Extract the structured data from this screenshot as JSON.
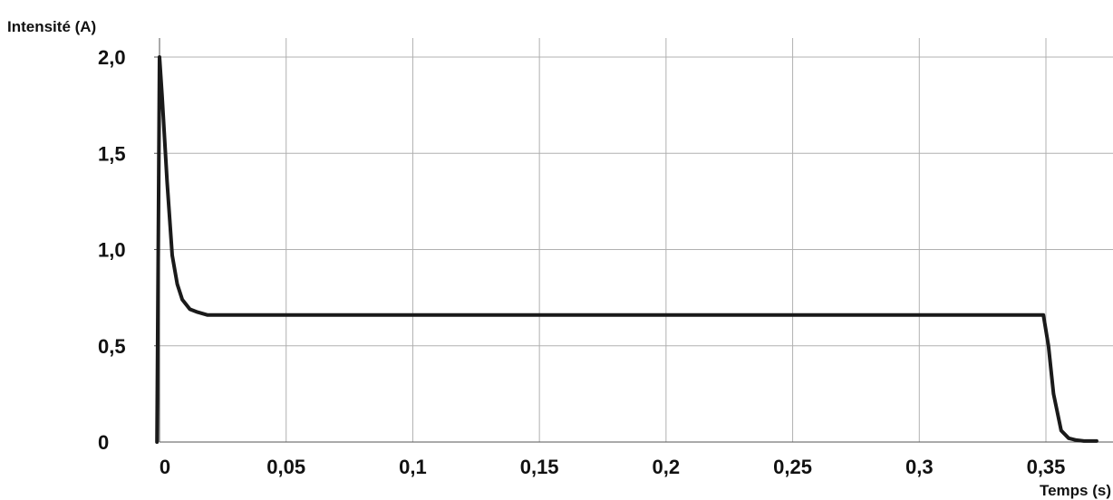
{
  "chart_data": {
    "type": "line",
    "title": "",
    "xlabel": "Temps (s)",
    "ylabel": "Intensité (A)",
    "xlim": [
      0,
      0.37
    ],
    "ylim": [
      0,
      2.0
    ],
    "grid": true,
    "legend": "none",
    "line_color": "#1a1a1a",
    "grid_color": "#b0b0b0",
    "x_ticks": [
      {
        "value": 0,
        "label": "0"
      },
      {
        "value": 0.05,
        "label": "0,05"
      },
      {
        "value": 0.1,
        "label": "0,1"
      },
      {
        "value": 0.15,
        "label": "0,15"
      },
      {
        "value": 0.2,
        "label": "0,2"
      },
      {
        "value": 0.25,
        "label": "0,25"
      },
      {
        "value": 0.3,
        "label": "0,3"
      },
      {
        "value": 0.35,
        "label": "0,35"
      }
    ],
    "y_ticks": [
      {
        "value": 0,
        "label": "0"
      },
      {
        "value": 0.5,
        "label": "0,5"
      },
      {
        "value": 1.0,
        "label": "1,0"
      },
      {
        "value": 1.5,
        "label": "1,5"
      },
      {
        "value": 2.0,
        "label": "2,0"
      }
    ],
    "series": [
      {
        "x": [
          -0.001,
          0,
          0.001,
          0.003,
          0.005,
          0.007,
          0.009,
          0.012,
          0.015,
          0.019,
          0.05,
          0.1,
          0.15,
          0.2,
          0.25,
          0.3,
          0.349,
          0.351,
          0.353,
          0.356,
          0.359,
          0.362,
          0.365,
          0.37
        ],
        "y": [
          0,
          2.0,
          1.8,
          1.35,
          0.97,
          0.82,
          0.74,
          0.69,
          0.675,
          0.66,
          0.66,
          0.66,
          0.66,
          0.66,
          0.66,
          0.66,
          0.66,
          0.5,
          0.25,
          0.06,
          0.02,
          0.01,
          0.005,
          0.005
        ]
      }
    ]
  }
}
